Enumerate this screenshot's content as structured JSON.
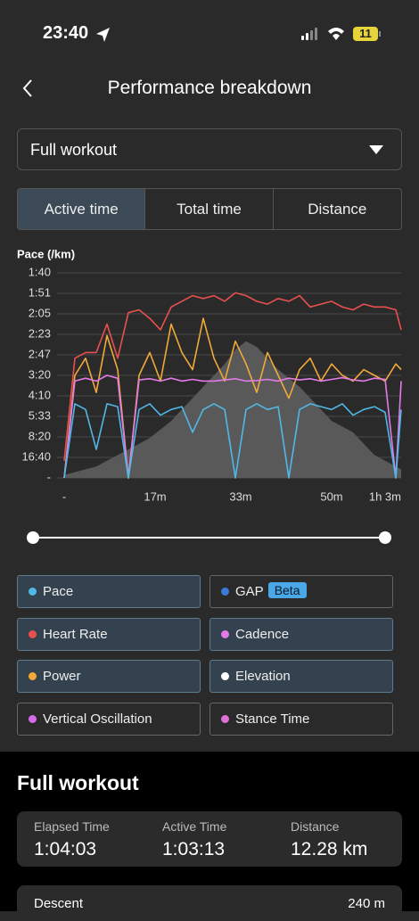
{
  "status_bar": {
    "time": "23:40",
    "battery": "11"
  },
  "header": {
    "title": "Performance breakdown"
  },
  "dropdown": {
    "label": "Full workout"
  },
  "tabs": {
    "items": [
      "Active time",
      "Total time",
      "Distance"
    ],
    "active": 0
  },
  "chart_data": {
    "type": "line",
    "y_label": "Pace (/km)",
    "ylim": [
      0,
      36
    ],
    "yticks": [
      {
        "value": 36,
        "label": "1:40"
      },
      {
        "value": 32.4,
        "label": "1:51"
      },
      {
        "value": 28.8,
        "label": "2:05"
      },
      {
        "value": 25.2,
        "label": "2:23"
      },
      {
        "value": 21.6,
        "label": "2:47"
      },
      {
        "value": 18,
        "label": "3:20"
      },
      {
        "value": 14.4,
        "label": "4:10"
      },
      {
        "value": 10.8,
        "label": "5:33"
      },
      {
        "value": 7.2,
        "label": "8:20"
      },
      {
        "value": 3.6,
        "label": "16:40"
      },
      {
        "value": 0,
        "label": "-"
      }
    ],
    "xlim": [
      0,
      63
    ],
    "xticks": [
      {
        "value": 0,
        "label": "-"
      },
      {
        "value": 17,
        "label": "17m"
      },
      {
        "value": 33,
        "label": "33m"
      },
      {
        "value": 50,
        "label": "50m"
      },
      {
        "value": 63,
        "label": "1h 3m"
      }
    ],
    "grid": true,
    "x": [
      0,
      2,
      4,
      6,
      8,
      10,
      12,
      14,
      16,
      18,
      20,
      22,
      24,
      26,
      28,
      30,
      32,
      34,
      36,
      38,
      40,
      42,
      44,
      46,
      48,
      50,
      52,
      54,
      56,
      58,
      60,
      62,
      63
    ],
    "series": [
      {
        "name": "Pace",
        "color": "#4fb8e8",
        "selected": true,
        "values": [
          0,
          13,
          12,
          5,
          13,
          12.5,
          0,
          12,
          13,
          11,
          12,
          12.5,
          8,
          12,
          13,
          12,
          0,
          12,
          13,
          12,
          12.5,
          0,
          12,
          13,
          12.5,
          12,
          13,
          11,
          12,
          12.5,
          11.5,
          0,
          12
        ]
      },
      {
        "name": "GAP",
        "color": "#3a7bd5",
        "selected": false,
        "badge": "Beta"
      },
      {
        "name": "Heart Rate",
        "color": "#e85050",
        "selected": true,
        "values": [
          3,
          21,
          22,
          22,
          27,
          21,
          29,
          29.5,
          28,
          26,
          30,
          31,
          32,
          31.5,
          32,
          31,
          32.5,
          32,
          31,
          30.5,
          31.5,
          31,
          32,
          30,
          30.5,
          31,
          30,
          29.5,
          30.5,
          30,
          30,
          29.5,
          26
        ]
      },
      {
        "name": "Cadence",
        "color": "#e27be8",
        "selected": true,
        "values": [
          0,
          17,
          17.5,
          17,
          18,
          17.5,
          0,
          17.2,
          17.4,
          17,
          17.5,
          17,
          17.3,
          17,
          17,
          17.2,
          17.4,
          17,
          17.1,
          17.3,
          17,
          17.5,
          17.2,
          17.4,
          17,
          17.3,
          17.6,
          17.2,
          17,
          17.5,
          17.3,
          0,
          17
        ]
      },
      {
        "name": "Power",
        "color": "#f0a93a",
        "selected": true,
        "values": [
          0,
          18,
          21,
          15,
          25,
          19,
          0,
          18,
          22,
          17,
          27,
          22,
          19,
          28,
          21,
          17,
          24,
          20,
          15,
          22,
          18,
          14,
          19,
          21,
          17,
          20,
          18,
          17,
          19,
          18,
          17,
          20,
          19
        ]
      },
      {
        "name": "Elevation",
        "color": "#ffffff",
        "area_color": "#595959",
        "selected": true,
        "type": "area",
        "values": [
          0.5,
          1,
          1.5,
          2,
          3,
          4,
          5,
          6,
          7,
          8.5,
          10,
          12,
          14,
          16,
          18,
          20,
          22.5,
          24,
          23,
          21,
          19,
          17.5,
          16,
          14,
          12,
          10,
          9,
          8,
          6,
          4,
          3,
          2,
          1.5
        ]
      },
      {
        "name": "Vertical Oscillation",
        "color": "#d76ae8",
        "selected": false
      },
      {
        "name": "Stance Time",
        "color": "#e070d8",
        "selected": false
      }
    ]
  },
  "summary": {
    "title": "Full workout",
    "stats": [
      {
        "label": "Elapsed Time",
        "value": "1:04:03"
      },
      {
        "label": "Active Time",
        "value": "1:03:13"
      },
      {
        "label": "Distance",
        "value": "12.28 km"
      }
    ],
    "descent": {
      "label": "Descent",
      "value": "240 m"
    }
  }
}
